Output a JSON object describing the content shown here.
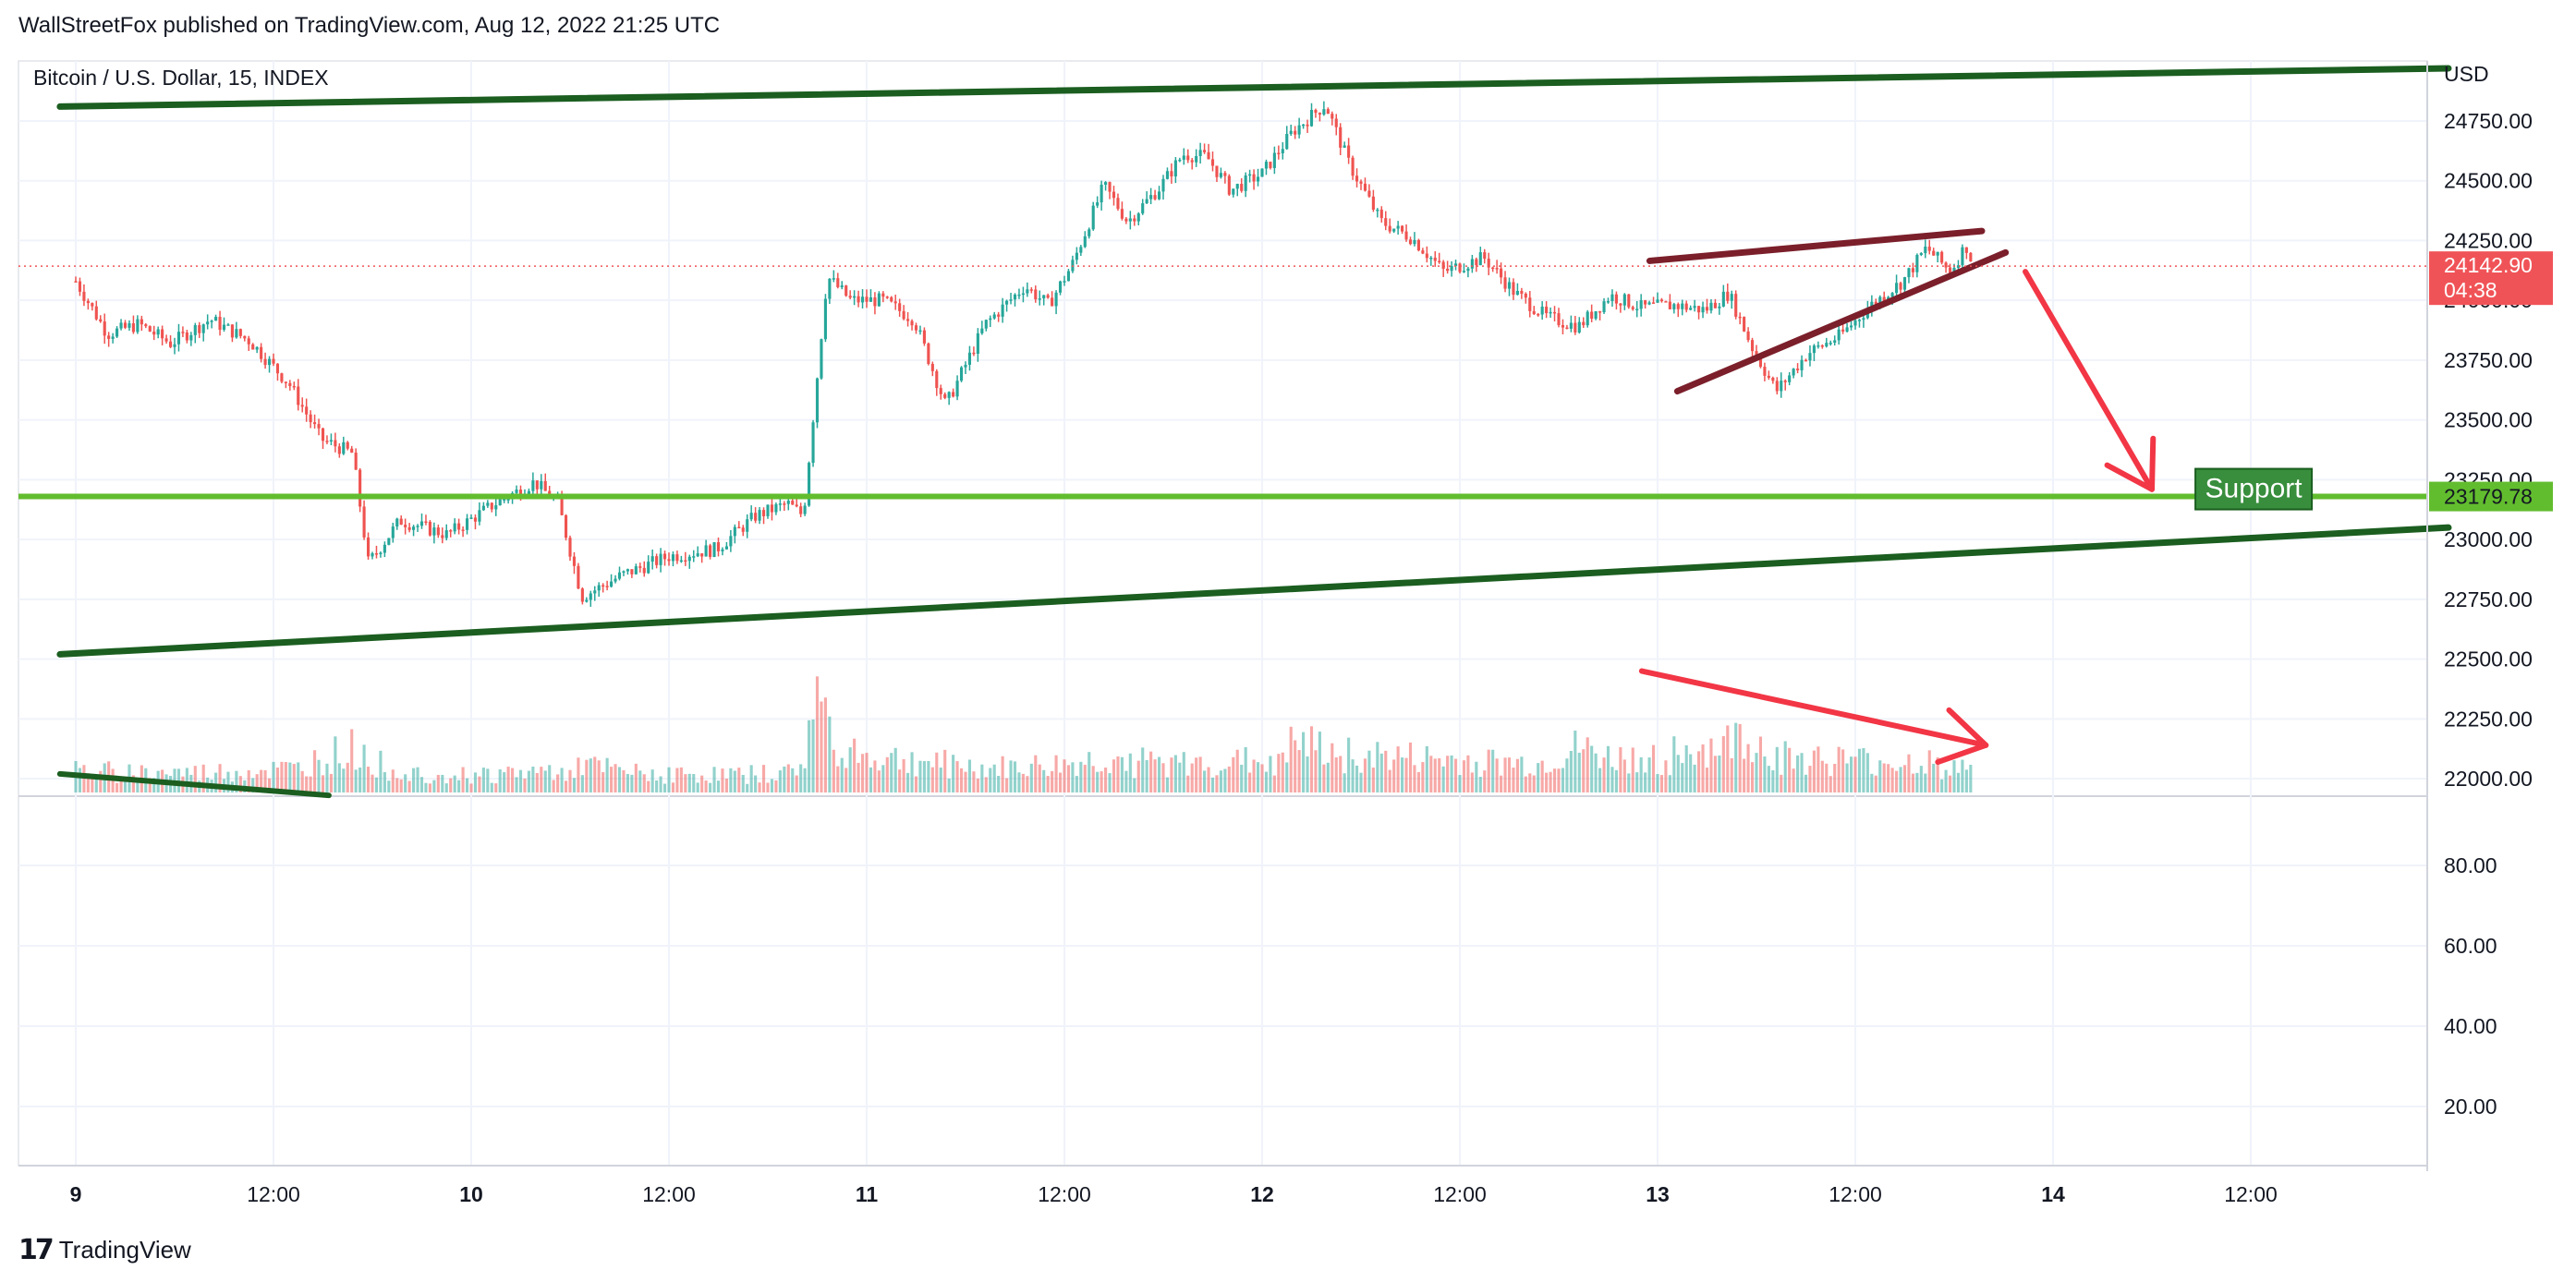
{
  "header": {
    "published_line": "WallStreetFox published on TradingView.com, Aug 12, 2022 21:25 UTC"
  },
  "footer": {
    "logo_icon": "tradingview-logo-icon",
    "brand": "TradingView"
  },
  "colors": {
    "up": "#26a69a",
    "down": "#ef5350",
    "channel": "#1b5e20",
    "support": "#62bd2e",
    "wedge": "#7b1f2b",
    "arrow": "#f23645",
    "price_badge": "#f05357",
    "support_badge": "#388e3c",
    "grid": "#f0f3fa",
    "axis_border": "#d1d4dc"
  },
  "chart_data": {
    "type": "candlestick",
    "symbol": "Bitcoin / U.S. Dollar, 15, INDEX",
    "currency": "USD",
    "ylim": [
      21950,
      25050
    ],
    "y_ticks": [
      "24750.00",
      "24500.00",
      "24250.00",
      "24000.00",
      "23750.00",
      "23500.00",
      "23250.00",
      "23000.00",
      "22750.00",
      "22500.00",
      "22250.00",
      "22000.00"
    ],
    "x_ticks": [
      {
        "label": "9",
        "bold": true
      },
      {
        "label": "12:00",
        "bold": false
      },
      {
        "label": "10",
        "bold": true
      },
      {
        "label": "12:00",
        "bold": false
      },
      {
        "label": "11",
        "bold": true
      },
      {
        "label": "12:00",
        "bold": false
      },
      {
        "label": "12",
        "bold": true
      },
      {
        "label": "12:00",
        "bold": false
      },
      {
        "label": "13",
        "bold": true
      },
      {
        "label": "12:00",
        "bold": false
      },
      {
        "label": "14",
        "bold": true
      },
      {
        "label": "12:00",
        "bold": false
      }
    ],
    "current_price": {
      "value": 24142.9,
      "label": "24142.90",
      "countdown": "04:38"
    },
    "support": {
      "value": 23179.78,
      "label": "23179.78",
      "text": "Support"
    },
    "price_path": [
      [
        0,
        24080
      ],
      [
        0.08,
        23860
      ],
      [
        0.16,
        23900
      ],
      [
        0.24,
        23820
      ],
      [
        0.34,
        23920
      ],
      [
        0.44,
        23830
      ],
      [
        0.54,
        23650
      ],
      [
        0.62,
        23420
      ],
      [
        0.7,
        23360
      ],
      [
        0.74,
        22900
      ],
      [
        0.82,
        23080
      ],
      [
        0.94,
        23020
      ],
      [
        1.06,
        23150
      ],
      [
        1.16,
        23240
      ],
      [
        1.22,
        23150
      ],
      [
        1.28,
        22760
      ],
      [
        1.38,
        22850
      ],
      [
        1.5,
        22930
      ],
      [
        1.62,
        22960
      ],
      [
        1.72,
        23100
      ],
      [
        1.8,
        23150
      ],
      [
        1.84,
        23100
      ],
      [
        1.87,
        23600
      ],
      [
        1.9,
        24100
      ],
      [
        1.96,
        24000
      ],
      [
        2.04,
        24000
      ],
      [
        2.12,
        23920
      ],
      [
        2.2,
        23560
      ],
      [
        2.3,
        23900
      ],
      [
        2.4,
        24060
      ],
      [
        2.46,
        23980
      ],
      [
        2.52,
        24150
      ],
      [
        2.6,
        24480
      ],
      [
        2.66,
        24330
      ],
      [
        2.74,
        24470
      ],
      [
        2.8,
        24610
      ],
      [
        2.86,
        24600
      ],
      [
        2.92,
        24460
      ],
      [
        3.0,
        24530
      ],
      [
        3.08,
        24710
      ],
      [
        3.16,
        24820
      ],
      [
        3.22,
        24570
      ],
      [
        3.3,
        24330
      ],
      [
        3.38,
        24260
      ],
      [
        3.46,
        24120
      ],
      [
        3.56,
        24180
      ],
      [
        3.64,
        24030
      ],
      [
        3.72,
        23930
      ],
      [
        3.8,
        23890
      ],
      [
        3.88,
        24020
      ],
      [
        3.96,
        23970
      ],
      [
        4.04,
        23980
      ],
      [
        4.12,
        23960
      ],
      [
        4.18,
        24030
      ],
      [
        4.24,
        23800
      ],
      [
        4.3,
        23620
      ],
      [
        4.38,
        23780
      ],
      [
        4.46,
        23850
      ],
      [
        4.54,
        23980
      ],
      [
        4.62,
        24080
      ],
      [
        4.68,
        24220
      ],
      [
        4.74,
        24120
      ],
      [
        4.78,
        24230
      ],
      [
        4.8,
        24140
      ]
    ],
    "volume_path": [
      [
        0,
        55
      ],
      [
        0.3,
        50
      ],
      [
        0.5,
        58
      ],
      [
        0.58,
        60
      ],
      [
        0.6,
        80
      ],
      [
        0.7,
        110
      ],
      [
        0.74,
        90
      ],
      [
        0.8,
        55
      ],
      [
        1.0,
        45
      ],
      [
        1.2,
        55
      ],
      [
        1.28,
        70
      ],
      [
        1.4,
        50
      ],
      [
        1.6,
        45
      ],
      [
        1.8,
        50
      ],
      [
        1.84,
        75
      ],
      [
        1.87,
        250
      ],
      [
        1.92,
        140
      ],
      [
        2.0,
        90
      ],
      [
        2.2,
        75
      ],
      [
        2.3,
        60
      ],
      [
        2.5,
        70
      ],
      [
        2.6,
        85
      ],
      [
        2.8,
        70
      ],
      [
        3.0,
        80
      ],
      [
        3.08,
        120
      ],
      [
        3.16,
        110
      ],
      [
        3.3,
        90
      ],
      [
        3.5,
        80
      ],
      [
        3.7,
        70
      ],
      [
        3.8,
        110
      ],
      [
        3.88,
        85
      ],
      [
        4.0,
        90
      ],
      [
        4.1,
        110
      ],
      [
        4.18,
        120
      ],
      [
        4.22,
        150
      ],
      [
        4.3,
        90
      ],
      [
        4.5,
        80
      ],
      [
        4.7,
        75
      ],
      [
        4.8,
        60
      ]
    ],
    "rsi_pane": {
      "y_ticks": [
        "80.00",
        "60.00",
        "40.00",
        "20.00"
      ],
      "ylim": [
        0,
        100
      ]
    },
    "drawings": {
      "channel_upper": [
        [
          -0.04,
          24810
        ],
        [
          6.0,
          24970
        ]
      ],
      "channel_lower": [
        [
          -0.04,
          22520
        ],
        [
          6.0,
          23050
        ]
      ],
      "wedge_upper": [
        [
          3.98,
          24165
        ],
        [
          4.82,
          24290
        ]
      ],
      "wedge_lower": [
        [
          4.05,
          23620
        ],
        [
          4.88,
          24200
        ]
      ],
      "arrow_price": {
        "from": [
          4.93,
          24120
        ],
        "to": [
          5.25,
          23210
        ]
      },
      "arrow_volume": {
        "from": [
          3.96,
          22450
        ],
        "to": [
          4.83,
          22140
        ]
      },
      "old_trend_fragment": [
        [
          -0.04,
          22020
        ],
        [
          0.64,
          21930
        ]
      ]
    }
  }
}
